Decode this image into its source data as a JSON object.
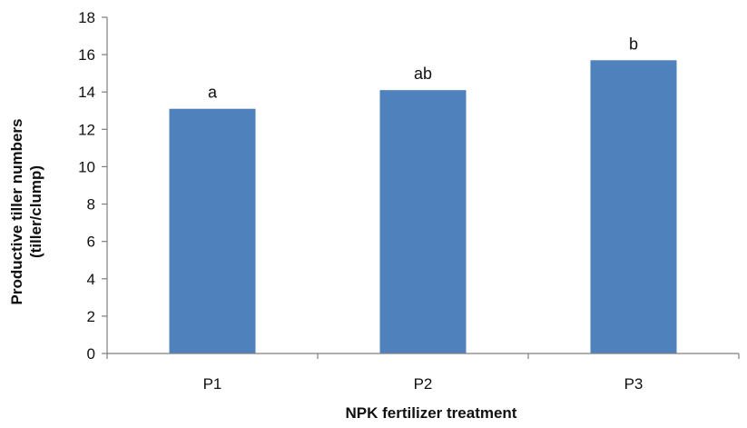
{
  "chart_data": {
    "type": "bar",
    "categories": [
      "P1",
      "P2",
      "P3"
    ],
    "values": [
      13.1,
      14.1,
      15.7
    ],
    "data_labels": [
      "a",
      "ab",
      "b"
    ],
    "title": "",
    "xlabel": "NPK fertilizer treatment",
    "ylabel_lines": [
      "Productive tiller numbers",
      "(tiller/clump)"
    ],
    "ylim": [
      0,
      18
    ],
    "yticks": [
      0,
      2,
      4,
      6,
      8,
      10,
      12,
      14,
      16,
      18
    ],
    "grid": false,
    "legend": "none",
    "bar_color": "#4F81BD",
    "axis_color": "#7f7f7f"
  }
}
